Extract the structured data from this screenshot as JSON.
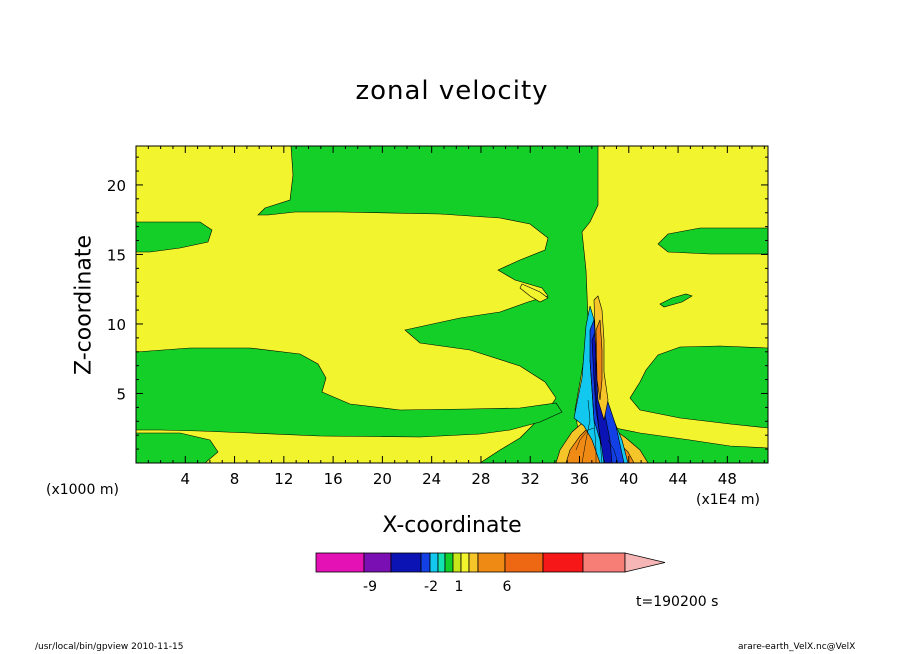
{
  "chart_data": {
    "type": "heatmap",
    "title": "zonal velocity",
    "xlabel": "X-coordinate",
    "ylabel": "Z-coordinate",
    "x_unit_note": "(x1000 m)",
    "x_unit_note_right": "(x1E4 m)",
    "x_ticks": [
      4,
      8,
      12,
      16,
      20,
      24,
      28,
      32,
      36,
      40,
      44,
      48
    ],
    "y_ticks": [
      5,
      10,
      15,
      20
    ],
    "xlim": [
      0,
      51.3
    ],
    "ylim": [
      0,
      22.8
    ],
    "colorbar": {
      "tick_labels": [
        "-9",
        "-2",
        "1",
        "6"
      ],
      "colors": [
        "#e411b4",
        "#7a10b4",
        "#0b13b4",
        "#1240e4",
        "#12c8ee",
        "#13e3b0",
        "#13cf27",
        "#c8e61a",
        "#f2f42e",
        "#f5c52a",
        "#ef8b14",
        "#ee6814",
        "#f61818",
        "#f67e77",
        "#f5b6b5"
      ]
    },
    "time_label": "t=190200 s",
    "footer_left": "/usr/local/bin/gpview  2010-11-15",
    "footer_right": "arare-earth_VelX.nc@VelX"
  }
}
